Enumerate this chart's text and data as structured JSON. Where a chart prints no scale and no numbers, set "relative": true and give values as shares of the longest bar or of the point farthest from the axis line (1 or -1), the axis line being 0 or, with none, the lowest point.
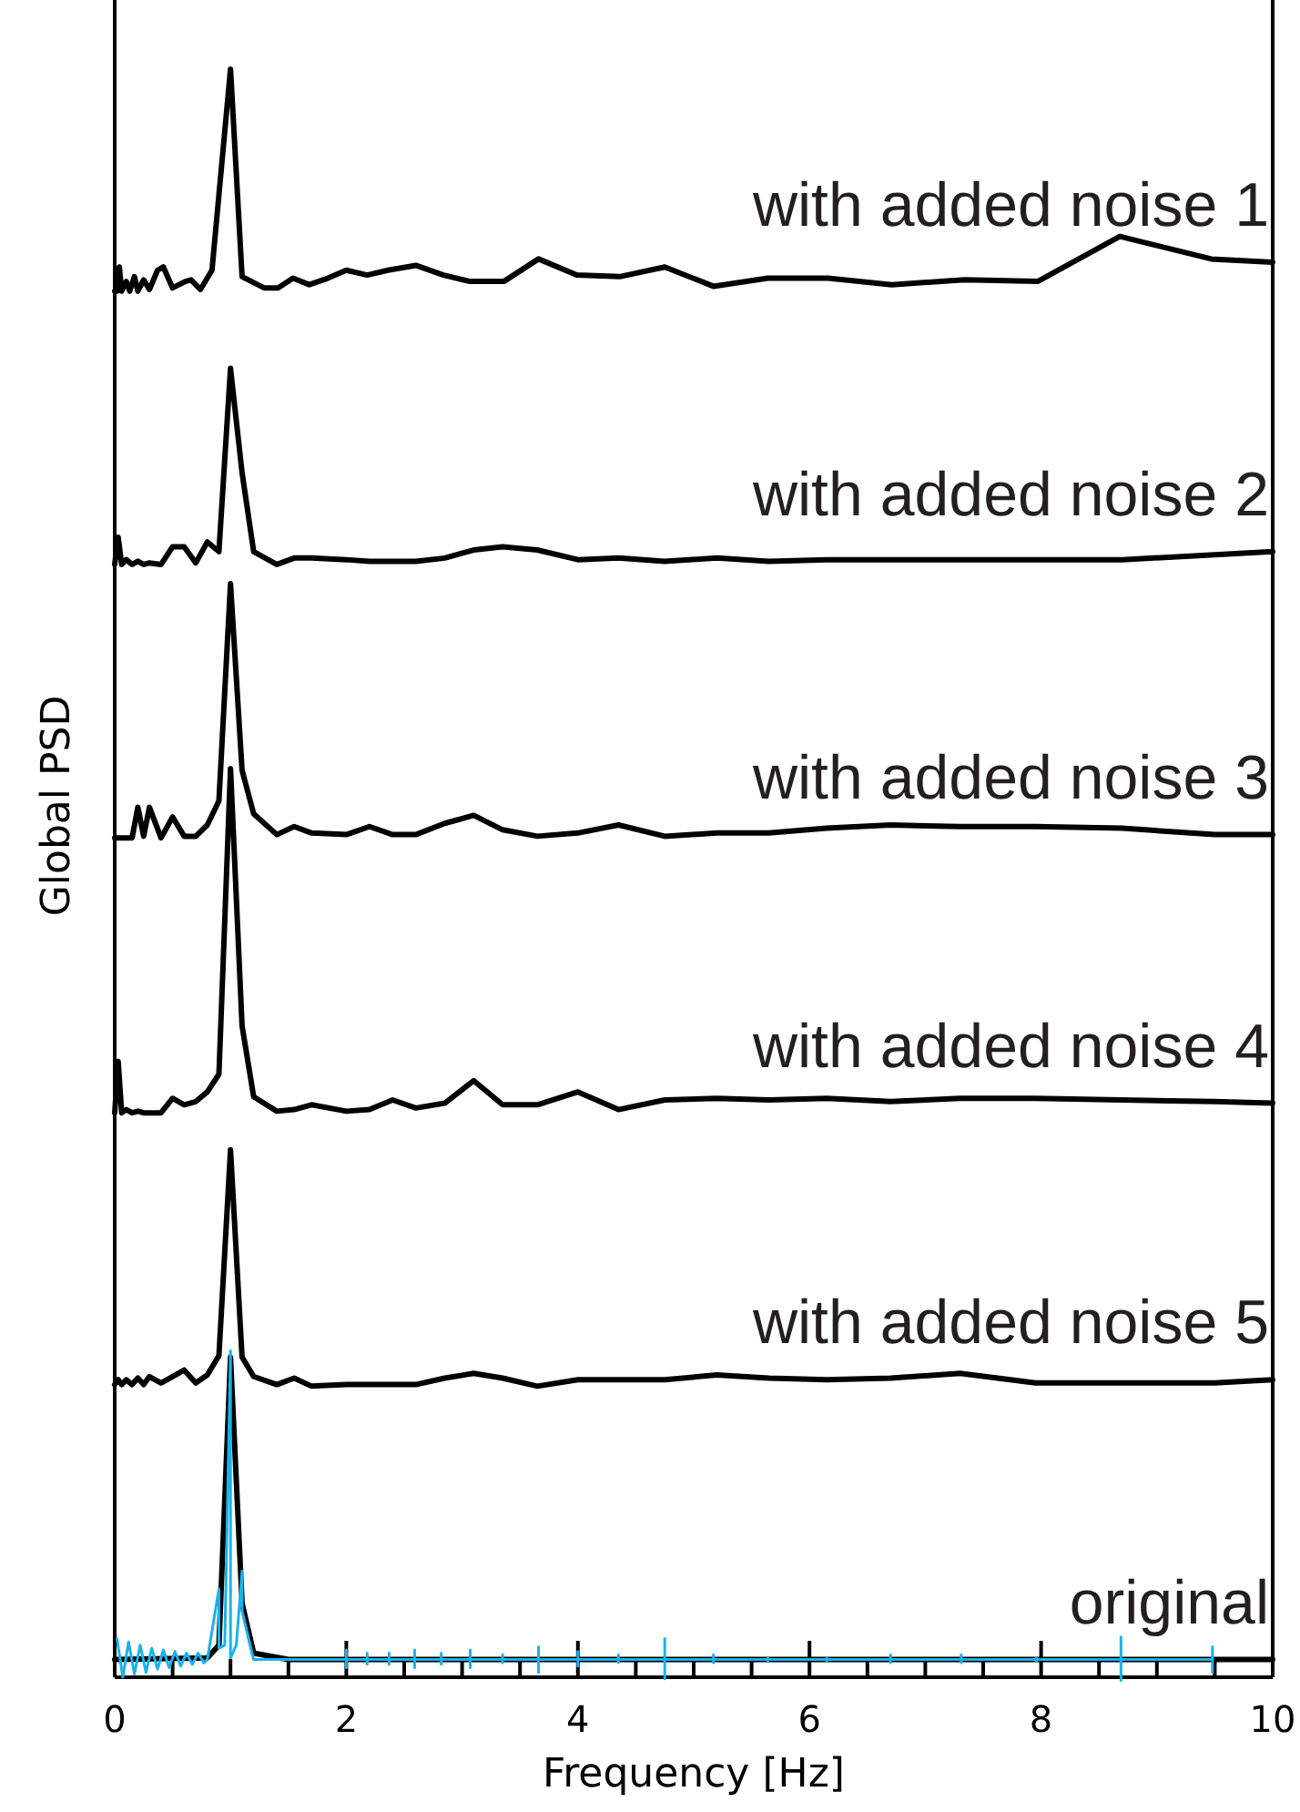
{
  "chart_data": {
    "type": "line",
    "relative": true,
    "xlabel": "Frequency [Hz]",
    "ylabel": "Global PSD",
    "xlim": [
      0,
      10
    ],
    "xticks": [
      0,
      {
        "value": 0.5,
        "label": null
      },
      {
        "value": 1,
        "label": null
      },
      {
        "value": 1.5,
        "label": null
      },
      2,
      {
        "value": 2.5,
        "label": null
      },
      {
        "value": 3,
        "label": null
      },
      {
        "value": 3.5,
        "label": null
      },
      4,
      {
        "value": 4.5,
        "label": null
      },
      {
        "value": 5,
        "label": null
      },
      {
        "value": 5.5,
        "label": null
      },
      6,
      {
        "value": 6.5,
        "label": null
      },
      {
        "value": 7,
        "label": null
      },
      {
        "value": 7.5,
        "label": null
      },
      8,
      {
        "value": 8.5,
        "label": null
      },
      {
        "value": 9,
        "label": null
      },
      {
        "value": 9.5,
        "label": null
      },
      10
    ],
    "series": [
      {
        "name": "with added noise 1",
        "color": "#000000",
        "x": [
          0,
          0.02,
          0.04,
          0.06,
          0.1,
          0.13,
          0.17,
          0.2,
          0.25,
          0.3,
          0.37,
          0.42,
          0.5,
          0.61,
          0.66,
          0.74,
          0.84,
          1.0,
          1.1,
          1.29,
          1.41,
          1.54,
          1.68,
          1.84,
          2.0,
          2.18,
          2.36,
          2.6,
          2.84,
          3.07,
          3.36,
          3.66,
          3.99,
          4.36,
          4.75,
          5.17,
          5.64,
          6.16,
          6.71,
          7.34,
          7.97,
          8.68,
          9.47,
          10
        ],
        "values": [
          0.862,
          0.862,
          0.877,
          0.862,
          0.868,
          0.862,
          0.871,
          0.862,
          0.869,
          0.863,
          0.875,
          0.877,
          0.864,
          0.868,
          0.869,
          0.863,
          0.875,
          1,
          0.871,
          0.864,
          0.864,
          0.87,
          0.866,
          0.87,
          0.875,
          0.872,
          0.875,
          0.878,
          0.872,
          0.868,
          0.868,
          0.882,
          0.872,
          0.871,
          0.877,
          0.865,
          0.87,
          0.87,
          0.866,
          0.869,
          0.868,
          0.896,
          0.882,
          0.88
        ]
      },
      {
        "name": "with added noise 2",
        "color": "#000000",
        "x": [
          0,
          0.03,
          0.06,
          0.1,
          0.15,
          0.2,
          0.25,
          0.3,
          0.4,
          0.5,
          0.6,
          0.7,
          0.8,
          0.9,
          1.0,
          1.1,
          1.2,
          1.4,
          1.55,
          1.7,
          2.0,
          2.2,
          2.4,
          2.6,
          2.85,
          3.1,
          3.35,
          3.65,
          4.0,
          4.35,
          4.75,
          5.2,
          5.65,
          6.15,
          6.7,
          7.3,
          7.95,
          8.7,
          9.5,
          10
        ],
        "values": [
          0.692,
          0.709,
          0.692,
          0.695,
          0.692,
          0.694,
          0.692,
          0.693,
          0.692,
          0.703,
          0.703,
          0.693,
          0.706,
          0.7,
          0.814,
          0.749,
          0.7,
          0.692,
          0.696,
          0.696,
          0.695,
          0.694,
          0.694,
          0.694,
          0.696,
          0.701,
          0.703,
          0.701,
          0.695,
          0.696,
          0.694,
          0.696,
          0.694,
          0.695,
          0.695,
          0.695,
          0.695,
          0.695,
          0.698,
          0.7
        ]
      },
      {
        "name": "with added noise 3",
        "color": "#000000",
        "x": [
          0,
          0.03,
          0.06,
          0.1,
          0.15,
          0.2,
          0.25,
          0.3,
          0.4,
          0.5,
          0.6,
          0.7,
          0.8,
          0.9,
          1.0,
          1.1,
          1.2,
          1.4,
          1.55,
          1.7,
          2.0,
          2.2,
          2.4,
          2.6,
          2.85,
          3.1,
          3.35,
          3.65,
          4.0,
          4.35,
          4.75,
          5.2,
          5.65,
          6.15,
          6.7,
          7.3,
          7.95,
          8.7,
          9.5,
          10
        ],
        "values": [
          0.522,
          0.522,
          0.522,
          0.522,
          0.522,
          0.541,
          0.523,
          0.541,
          0.522,
          0.535,
          0.523,
          0.523,
          0.53,
          0.545,
          0.68,
          0.564,
          0.537,
          0.524,
          0.529,
          0.525,
          0.524,
          0.529,
          0.524,
          0.524,
          0.531,
          0.536,
          0.527,
          0.523,
          0.525,
          0.53,
          0.523,
          0.525,
          0.525,
          0.528,
          0.53,
          0.529,
          0.529,
          0.528,
          0.524,
          0.524
        ]
      },
      {
        "name": "with added noise 4",
        "color": "#000000",
        "x": [
          0,
          0.03,
          0.06,
          0.1,
          0.15,
          0.2,
          0.25,
          0.3,
          0.4,
          0.5,
          0.6,
          0.7,
          0.8,
          0.9,
          1.0,
          1.1,
          1.2,
          1.4,
          1.55,
          1.7,
          2.0,
          2.2,
          2.4,
          2.6,
          2.85,
          3.1,
          3.35,
          3.65,
          4.0,
          4.35,
          4.75,
          5.2,
          5.65,
          6.15,
          6.7,
          7.3,
          7.95,
          8.7,
          9.5,
          10
        ],
        "values": [
          0.351,
          0.383,
          0.351,
          0.353,
          0.351,
          0.352,
          0.351,
          0.351,
          0.351,
          0.36,
          0.356,
          0.358,
          0.364,
          0.375,
          0.565,
          0.405,
          0.361,
          0.352,
          0.353,
          0.356,
          0.352,
          0.353,
          0.359,
          0.354,
          0.357,
          0.371,
          0.356,
          0.356,
          0.364,
          0.353,
          0.359,
          0.36,
          0.359,
          0.36,
          0.358,
          0.36,
          0.36,
          0.359,
          0.358,
          0.357
        ]
      },
      {
        "name": "with added noise 5",
        "color": "#000000",
        "x": [
          0,
          0.03,
          0.06,
          0.1,
          0.15,
          0.2,
          0.25,
          0.3,
          0.4,
          0.5,
          0.6,
          0.7,
          0.8,
          0.9,
          1.0,
          1.1,
          1.2,
          1.4,
          1.55,
          1.7,
          2.0,
          2.2,
          2.4,
          2.6,
          2.85,
          3.1,
          3.35,
          3.65,
          4.0,
          4.35,
          4.75,
          5.2,
          5.65,
          6.15,
          6.7,
          7.3,
          7.95,
          8.7,
          9.5,
          10
        ],
        "values": [
          0.182,
          0.185,
          0.182,
          0.185,
          0.182,
          0.186,
          0.182,
          0.187,
          0.183,
          0.187,
          0.191,
          0.183,
          0.188,
          0.2,
          0.328,
          0.199,
          0.187,
          0.182,
          0.186,
          0.181,
          0.182,
          0.182,
          0.182,
          0.182,
          0.186,
          0.189,
          0.186,
          0.181,
          0.185,
          0.185,
          0.185,
          0.188,
          0.186,
          0.185,
          0.186,
          0.189,
          0.183,
          0.183,
          0.183,
          0.185
        ]
      },
      {
        "name": "original",
        "color": "#000000",
        "x": [
          0,
          0.8,
          0.9,
          1.0,
          1.1,
          1.2,
          1.5,
          10
        ],
        "values": [
          0.011,
          0.012,
          0.02,
          0.199,
          0.046,
          0.015,
          0.011,
          0.011
        ]
      },
      {
        "color": "#1ab2ea",
        "x": [
          0.02,
          0.07,
          0.12,
          0.17,
          0.22,
          0.27,
          0.32,
          0.37,
          0.42,
          0.47,
          0.52,
          0.57,
          0.62,
          0.67,
          0.72,
          0.77,
          0.8,
          0.9,
          0.9,
          0.95,
          1.0,
          1.0,
          1.05,
          1.1,
          1.1,
          1.2,
          2,
          2,
          2,
          2,
          2.18,
          2.18,
          2.18,
          2.18,
          2.37,
          2.37,
          2.37,
          2.37,
          2.59,
          2.59,
          2.59,
          2.59,
          2.82,
          2.82,
          2.82,
          2.82,
          3.07,
          3.07,
          3.07,
          3.07,
          3.35,
          3.35,
          3.35,
          3.35,
          3.66,
          3.66,
          3.66,
          3.66,
          4,
          4,
          4,
          4,
          4.35,
          4.35,
          4.35,
          4.35,
          4.75,
          4.75,
          4.75,
          4.75,
          5.17,
          5.17,
          5.17,
          5.17,
          5.64,
          5.64,
          5.64,
          5.64,
          6.15,
          6.15,
          6.15,
          6.15,
          6.7,
          6.7,
          6.7,
          6.7,
          7.31,
          7.31,
          7.31,
          7.31,
          7.96,
          7.96,
          7.96,
          7.96,
          8.69,
          8.69,
          8.69,
          8.69,
          9.48,
          9.48,
          9.48,
          9.48
        ],
        "values": [
          0.024,
          0,
          0.022,
          0.002,
          0.02,
          0.003,
          0.018,
          0.005,
          0.017,
          0.006,
          0.016,
          0.007,
          0.015,
          0.008,
          0.015,
          0.009,
          0.011,
          0.055,
          0.018,
          0.02,
          0.203,
          0.012,
          0.02,
          0.066,
          0.041,
          0.011,
          0.011,
          0.017,
          0.006,
          0.011,
          0.011,
          0.015,
          0.008,
          0.011,
          0.011,
          0.015,
          0.008,
          0.011,
          0.011,
          0.017,
          0.006,
          0.011,
          0.011,
          0.015,
          0.008,
          0.011,
          0.011,
          0.017,
          0.006,
          0.011,
          0.011,
          0.014,
          0.009,
          0.011,
          0.011,
          0.019,
          0.003,
          0.011,
          0.011,
          0.016,
          0.007,
          0.011,
          0.011,
          0.014,
          0.009,
          0.011,
          0.011,
          0.024,
          -0.001,
          0.011,
          0.011,
          0.014,
          0.009,
          0.011,
          0.011,
          0.012,
          0.01,
          0.011,
          0.011,
          0.012,
          0.01,
          0.011,
          0.011,
          0.014,
          0.009,
          0.011,
          0.011,
          0.014,
          0.009,
          0.011,
          0.011,
          0.012,
          0.01,
          0.011,
          0.011,
          0.025,
          -0.002,
          0.011,
          0.011,
          0.019,
          0.003,
          0.011
        ]
      }
    ]
  }
}
